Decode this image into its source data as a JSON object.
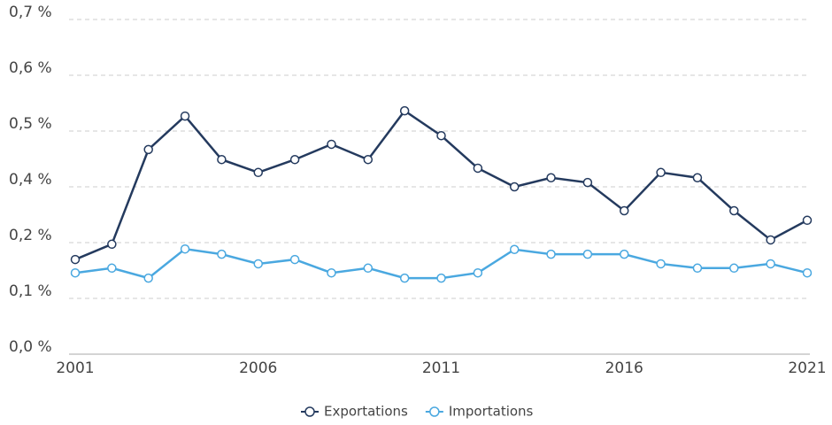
{
  "chart_data": {
    "type": "line",
    "x": [
      2001,
      2002,
      2003,
      2004,
      2005,
      2006,
      2007,
      2008,
      2009,
      2010,
      2011,
      2012,
      2013,
      2014,
      2015,
      2016,
      2017,
      2018,
      2019,
      2020,
      2021
    ],
    "series": [
      {
        "name": "Exportations",
        "color": "#243a5e",
        "values": [
          0.198,
          0.23,
          0.428,
          0.498,
          0.407,
          0.38,
          0.407,
          0.439,
          0.407,
          0.509,
          0.457,
          0.389,
          0.35,
          0.369,
          0.359,
          0.3,
          0.38,
          0.369,
          0.3,
          0.239,
          0.28
        ]
      },
      {
        "name": "Importations",
        "color": "#4aa8e0",
        "values": [
          0.17,
          0.18,
          0.159,
          0.22,
          0.209,
          0.189,
          0.198,
          0.17,
          0.18,
          0.159,
          0.159,
          0.17,
          0.219,
          0.209,
          0.209,
          0.209,
          0.189,
          0.18,
          0.18,
          0.189,
          0.17
        ]
      }
    ],
    "xlim": [
      2001,
      2021
    ],
    "xticks": [
      2001,
      2006,
      2011,
      2016,
      2021
    ],
    "ylim": [
      0,
      0.7
    ],
    "yticks": [
      {
        "value": 0,
        "label": "0,0 %"
      },
      {
        "value": 0.1167,
        "label": "0,1 %"
      },
      {
        "value": 0.2333,
        "label": "0,2 %"
      },
      {
        "value": 0.35,
        "label": "0,4 %"
      },
      {
        "value": 0.4667,
        "label": "0,5 %"
      },
      {
        "value": 0.5833,
        "label": "0,6 %"
      },
      {
        "value": 0.7,
        "label": "0,7 %"
      }
    ],
    "grid": true,
    "legend": "bottom"
  }
}
